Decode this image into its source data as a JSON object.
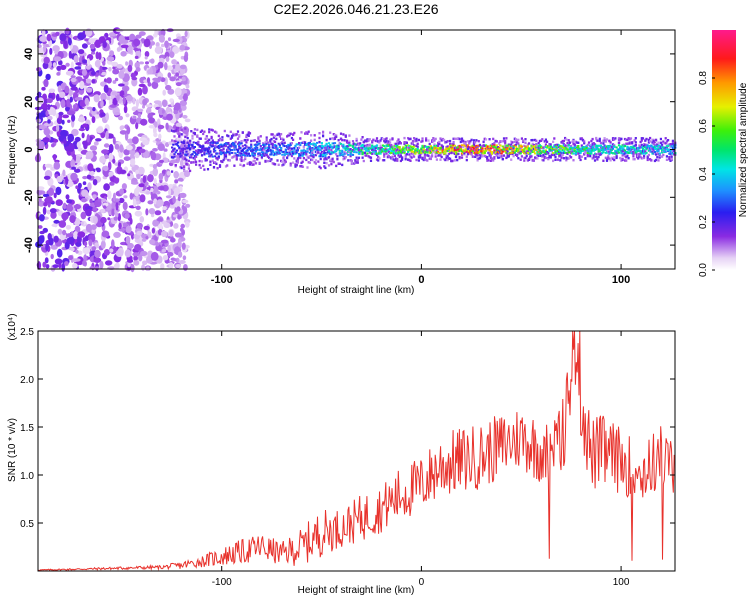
{
  "chart_data": [
    {
      "type": "heatmap",
      "title": "C2E2.2026.046.21.23.E26",
      "xlabel": "Height of straight line (km)",
      "ylabel": "Frequency (Hz)",
      "xlim": [
        -192,
        127
      ],
      "ylim": [
        -50,
        50
      ],
      "x_ticks": [
        -100,
        0,
        100
      ],
      "x_tick_labels": [
        "-100",
        "0",
        "100"
      ],
      "y_ticks": [
        -40,
        -20,
        0,
        20,
        40
      ],
      "y_tick_labels": [
        "-40",
        "-20",
        "0",
        "20",
        "40"
      ],
      "colorbar": {
        "label": "Normalized spectral amplitude",
        "range": [
          0.0,
          1.0
        ],
        "ticks": [
          0.0,
          0.2,
          0.4,
          0.6,
          0.8
        ],
        "tick_labels": [
          "0.0",
          "0.2",
          "0.4",
          "0.6",
          "0.8"
        ]
      },
      "description_points": {
        "noise_region_x": [
          -192,
          -125
        ],
        "band_center_freq": 0,
        "band_profile": [
          {
            "x": -125,
            "half_width": 6,
            "amplitude": 0.25
          },
          {
            "x": -100,
            "half_width": 5,
            "amplitude": 0.3
          },
          {
            "x": -75,
            "half_width": 4,
            "amplitude": 0.35
          },
          {
            "x": -50,
            "half_width": 5,
            "amplitude": 0.4
          },
          {
            "x": -25,
            "half_width": 3,
            "amplitude": 0.55
          },
          {
            "x": 0,
            "half_width": 3,
            "amplitude": 0.7
          },
          {
            "x": 25,
            "half_width": 3,
            "amplitude": 0.95
          },
          {
            "x": 50,
            "half_width": 3,
            "amplitude": 0.8
          },
          {
            "x": 75,
            "half_width": 3,
            "amplitude": 0.6
          },
          {
            "x": 100,
            "half_width": 3,
            "amplitude": 0.5
          },
          {
            "x": 127,
            "half_width": 3,
            "amplitude": 0.45
          }
        ]
      }
    },
    {
      "type": "line",
      "xlabel": "Height of straight line (km)",
      "ylabel": "SNR (10 * v/v)",
      "y_multiplier": "(x10⁴)",
      "xlim": [
        -192,
        127
      ],
      "ylim": [
        0,
        2.5
      ],
      "x_ticks": [
        -100,
        0,
        100
      ],
      "x_tick_labels": [
        "-100",
        "0",
        "100"
      ],
      "y_ticks": [
        0.5,
        1.0,
        1.5,
        2.0,
        2.5
      ],
      "y_tick_labels": [
        "0.5",
        "1.0",
        "1.5",
        "2.0",
        "2.5"
      ],
      "series": [
        {
          "name": "SNR",
          "color": "#e8322c",
          "x": [
            -192,
            -170,
            -150,
            -130,
            -120,
            -110,
            -100,
            -90,
            -80,
            -70,
            -60,
            -50,
            -40,
            -30,
            -20,
            -10,
            0,
            10,
            20,
            30,
            40,
            50,
            60,
            70,
            78,
            80,
            85,
            90,
            100,
            110,
            120,
            127
          ],
          "y": [
            0.01,
            0.02,
            0.03,
            0.04,
            0.06,
            0.1,
            0.15,
            0.2,
            0.25,
            0.18,
            0.25,
            0.4,
            0.45,
            0.55,
            0.65,
            0.8,
            0.9,
            1.1,
            1.15,
            1.2,
            1.3,
            1.4,
            1.25,
            1.3,
            2.5,
            1.8,
            1.2,
            1.25,
            1.15,
            1.0,
            1.2,
            1.05
          ],
          "envelope_amplitude": [
            0.005,
            0.01,
            0.015,
            0.02,
            0.04,
            0.06,
            0.1,
            0.13,
            0.15,
            0.12,
            0.2,
            0.25,
            0.2,
            0.25,
            0.25,
            0.3,
            0.3,
            0.35,
            0.35,
            0.35,
            0.35,
            0.35,
            0.35,
            0.4,
            0.5,
            0.5,
            0.4,
            0.4,
            0.35,
            0.3,
            0.35,
            0.3
          ]
        }
      ]
    }
  ]
}
